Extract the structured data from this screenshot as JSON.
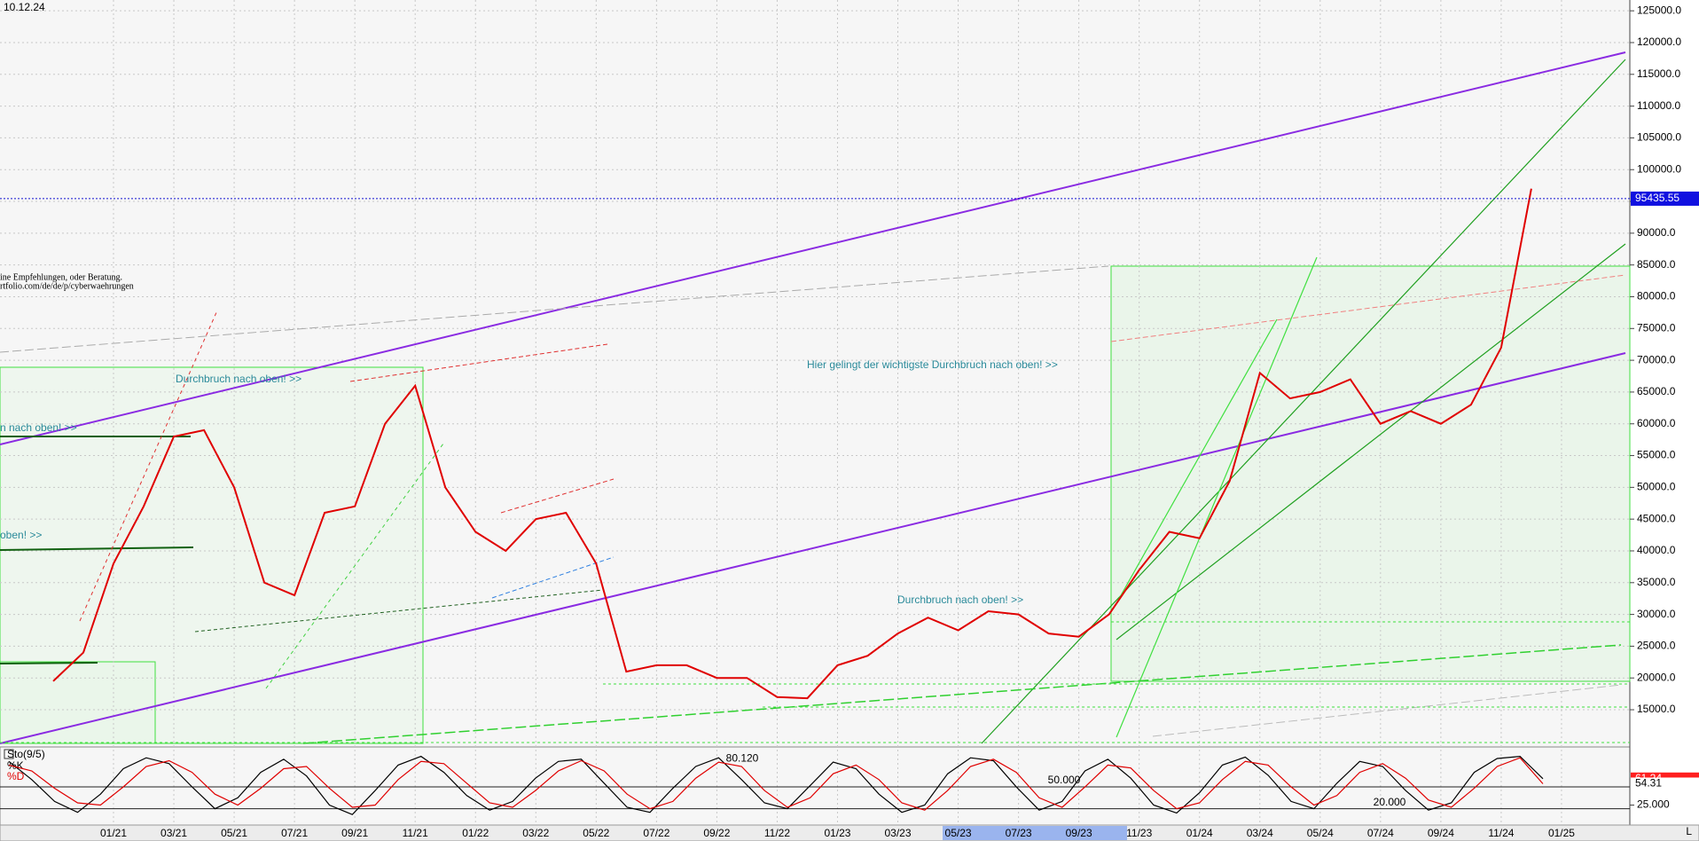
{
  "title": "10.12.24",
  "corner_label": "L",
  "chart_data": [
    {
      "type": "line",
      "color": "#e00000",
      "grid": true,
      "categories": [
        null,
        null,
        "01/21",
        null,
        "03/21",
        null,
        "05/21",
        null,
        "07/21",
        null,
        "09/21",
        null,
        "11/21",
        null,
        "01/22",
        null,
        "03/22",
        null,
        "05/22",
        null,
        "07/22",
        null,
        "09/22",
        null,
        "11/22",
        null,
        "01/23",
        null,
        "03/23",
        null,
        "05/23",
        null,
        "07/23",
        null,
        "09/23",
        null,
        "11/23",
        null,
        "01/24",
        null,
        "03/24",
        null,
        "05/24",
        null,
        "07/24",
        null,
        "09/24",
        null,
        "11/24",
        null,
        "01/25"
      ],
      "values": [
        19500,
        24000,
        38000,
        47000,
        58000,
        59000,
        50000,
        35000,
        33000,
        46000,
        47000,
        60000,
        66000,
        50000,
        43000,
        40000,
        45000,
        46000,
        38000,
        21000,
        22000,
        22000,
        20000,
        20000,
        17000,
        16800,
        22000,
        23500,
        27000,
        29500,
        27500,
        30500,
        30000,
        27000,
        26500,
        30000,
        37000,
        43000,
        42000,
        51000,
        68000,
        64000,
        65000,
        67000,
        60000,
        62000,
        60000,
        63000,
        72000,
        97000,
        null
      ],
      "current_price": 95435.55,
      "ylim": [
        9700,
        126700
      ],
      "yticks": [
        {
          "value": 15000,
          "label": "15000.0"
        },
        {
          "value": 20000,
          "label": "20000.0"
        },
        {
          "value": 25000,
          "label": "25000.0"
        },
        {
          "value": 30000,
          "label": "30000.0"
        },
        {
          "value": 35000,
          "label": "35000.0"
        },
        {
          "value": 40000,
          "label": "40000.0"
        },
        {
          "value": 45000,
          "label": "45000.0"
        },
        {
          "value": 50000,
          "label": "50000.0"
        },
        {
          "value": 55000,
          "label": "55000.0"
        },
        {
          "value": 60000,
          "label": "60000.0"
        },
        {
          "value": 65000,
          "label": "65000.0"
        },
        {
          "value": 70000,
          "label": "70000.0"
        },
        {
          "value": 75000,
          "label": "75000.0"
        },
        {
          "value": 80000,
          "label": "80000.0"
        },
        {
          "value": 85000,
          "label": "85000.0"
        },
        {
          "value": 90000,
          "label": "90000.0"
        },
        {
          "value": 95000,
          "label": "95000.0"
        },
        {
          "value": 100000,
          "label": "100000.0"
        },
        {
          "value": 105000,
          "label": "105000.0"
        },
        {
          "value": 110000,
          "label": "110000.0"
        },
        {
          "value": 115000,
          "label": "115000.0"
        },
        {
          "value": 120000,
          "label": "120000.0"
        },
        {
          "value": 125000,
          "label": "125000.0"
        }
      ],
      "annotations": [
        "Durchbruch nach oben! >>",
        "Hier gelingt der wichtigste Durchbruch nach oben! >>",
        "Durchbruch nach oben! >>",
        "n nach oben! >>",
        "oben! >>",
        "ine Empfehlungen, oder Beratung.",
        "rtfolio.com/de/de/p/cyberwaehrungen"
      ]
    },
    {
      "type": "line",
      "title": "Sto(9/5)",
      "ylim": [
        0,
        100
      ],
      "yticks": [
        {
          "value": 25,
          "label": "25.000"
        }
      ],
      "levels": [
        {
          "value": 80.12,
          "label": "80.120"
        },
        {
          "value": 50,
          "label": "50.000"
        },
        {
          "value": 20,
          "label": "20.000"
        }
      ],
      "series": [
        {
          "name": "%K",
          "color": "#000000",
          "values": [
            85,
            60,
            30,
            15,
            40,
            75,
            90,
            82,
            50,
            20,
            35,
            70,
            88,
            65,
            25,
            12,
            45,
            80,
            92,
            70,
            38,
            18,
            30,
            62,
            85,
            88,
            55,
            22,
            15,
            48,
            78,
            90,
            60,
            28,
            20,
            52,
            84,
            75,
            40,
            15,
            25,
            68,
            90,
            86,
            50,
            18,
            30,
            72,
            88,
            62,
            25,
            14,
            42,
            80,
            91,
            66,
            30,
            20,
            55,
            85,
            78,
            45,
            18,
            28,
            70,
            89,
            92,
            61.24
          ]
        },
        {
          "name": "%D",
          "color": "#e00000",
          "values": [
            80,
            72,
            48,
            28,
            25,
            50,
            78,
            86,
            70,
            40,
            25,
            48,
            75,
            78,
            48,
            22,
            25,
            60,
            85,
            82,
            55,
            28,
            22,
            45,
            72,
            86,
            72,
            40,
            20,
            30,
            62,
            84,
            78,
            45,
            22,
            35,
            68,
            80,
            60,
            28,
            18,
            45,
            78,
            88,
            70,
            35,
            22,
            50,
            80,
            76,
            45,
            20,
            28,
            60,
            85,
            80,
            50,
            25,
            38,
            70,
            82,
            62,
            32,
            22,
            48,
            78,
            90,
            54.31
          ]
        }
      ]
    }
  ]
}
